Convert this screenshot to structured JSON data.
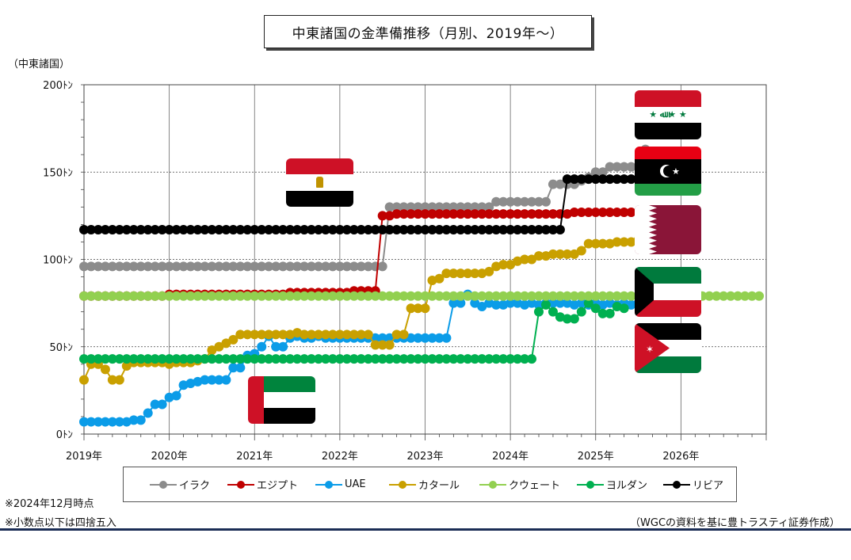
{
  "title": "中東諸国の金準備推移（月別、2019年～）",
  "unit_label": "（中東諸国）",
  "notes": [
    "※2024年12月時点",
    "※小数点以下は四捨五入"
  ],
  "source": "（WGCの資料を基に豊トラスティ証券作成）",
  "chart_data": {
    "type": "line",
    "title": "中東諸国の金準備推移（月別、2019年～）",
    "ylabel": "（中東諸国）",
    "ylim": [
      0,
      200
    ],
    "y_ticks": [
      0,
      50,
      100,
      150,
      200
    ],
    "y_tick_labels": [
      "0ﾄﾝ",
      "50ﾄﾝ",
      "100ﾄﾝ",
      "150ﾄﾝ",
      "200ﾄﾝ"
    ],
    "x_tick_labels": [
      "2019年",
      "2020年",
      "2021年",
      "2022年",
      "2023年",
      "2024年",
      "2025年",
      "2026年"
    ],
    "x_range": [
      "2019-01",
      "2027-01"
    ],
    "grid": "horizontal dashed, vertical solid at years",
    "legend_position": "bottom",
    "series": [
      {
        "name": "イラク",
        "color": "#8c8c8c",
        "start": "2019-01",
        "values": [
          96,
          96,
          96,
          96,
          96,
          96,
          96,
          96,
          96,
          96,
          96,
          96,
          96,
          96,
          96,
          96,
          96,
          96,
          96,
          96,
          96,
          96,
          96,
          96,
          96,
          96,
          96,
          96,
          96,
          96,
          96,
          96,
          96,
          96,
          96,
          96,
          96,
          96,
          96,
          96,
          96,
          96,
          96,
          130,
          130,
          130,
          130,
          130,
          130,
          130,
          130,
          130,
          130,
          130,
          130,
          130,
          130,
          130,
          133,
          133,
          133,
          133,
          133,
          133,
          133,
          133,
          143,
          143,
          143,
          143,
          145,
          147,
          150,
          150,
          153,
          153,
          153,
          153,
          153,
          163
        ]
      },
      {
        "name": "エジプト",
        "color": "#c00000",
        "start": "2019-01",
        "values": [
          79,
          79,
          79,
          79,
          79,
          79,
          79,
          79,
          79,
          79,
          79,
          79,
          80,
          80,
          80,
          80,
          80,
          80,
          80,
          80,
          80,
          80,
          80,
          80,
          80,
          80,
          80,
          80,
          80,
          81,
          81,
          81,
          81,
          81,
          81,
          81,
          81,
          81,
          82,
          82,
          82,
          82,
          125,
          125,
          126,
          126,
          126,
          126,
          126,
          126,
          126,
          126,
          126,
          126,
          126,
          126,
          126,
          126,
          126,
          126,
          126,
          126,
          126,
          126,
          126,
          126,
          126,
          126,
          126,
          127,
          127,
          127,
          127,
          127,
          127,
          127,
          127,
          127,
          127,
          127,
          127,
          127
        ]
      },
      {
        "name": "UAE",
        "color": "#0b9ce8",
        "start": "2019-01",
        "values": [
          7,
          7,
          7,
          7,
          7,
          7,
          7,
          8,
          8,
          12,
          17,
          17,
          21,
          22,
          28,
          29,
          30,
          31,
          31,
          31,
          31,
          38,
          38,
          45,
          46,
          50,
          56,
          50,
          50,
          55,
          56,
          55,
          55,
          56,
          55,
          55,
          55,
          55,
          55,
          55,
          55,
          55,
          55,
          55,
          55,
          55,
          55,
          55,
          55,
          55,
          55,
          55,
          75,
          75,
          80,
          75,
          73,
          75,
          74,
          74,
          75,
          75,
          74,
          75,
          74,
          75,
          75,
          75,
          75,
          74,
          75,
          74,
          75,
          74,
          75,
          74,
          75,
          74,
          75,
          75
        ]
      },
      {
        "name": "カタール",
        "color": "#c9a000",
        "start": "2019-01",
        "values": [
          31,
          40,
          40,
          37,
          31,
          31,
          39,
          41,
          41,
          41,
          41,
          41,
          40,
          41,
          41,
          41,
          42,
          43,
          48,
          50,
          52,
          54,
          57,
          57,
          57,
          57,
          57,
          57,
          57,
          57,
          58,
          57,
          57,
          57,
          57,
          57,
          57,
          57,
          57,
          57,
          57,
          51,
          51,
          51,
          57,
          57,
          72,
          72,
          72,
          88,
          89,
          92,
          92,
          92,
          92,
          92,
          92,
          93,
          96,
          97,
          97,
          99,
          100,
          100,
          102,
          102,
          103,
          103,
          103,
          103,
          105,
          109,
          109,
          109,
          109,
          110,
          110,
          110,
          111
        ]
      },
      {
        "name": "クウェート",
        "color": "#92d050",
        "start": "2019-01",
        "values": [
          79,
          79,
          79,
          79,
          79,
          79,
          79,
          79,
          79,
          79,
          79,
          79,
          79,
          79,
          79,
          79,
          79,
          79,
          79,
          79,
          79,
          79,
          79,
          79,
          79,
          79,
          79,
          79,
          79,
          79,
          79,
          79,
          79,
          79,
          79,
          79,
          79,
          79,
          79,
          79,
          79,
          79,
          79,
          79,
          79,
          79,
          79,
          79,
          79,
          79,
          79,
          79,
          79,
          79,
          79,
          79,
          79,
          79,
          79,
          79,
          79,
          79,
          79,
          79,
          79,
          79,
          79,
          79,
          79,
          79,
          79,
          79,
          79,
          79,
          79,
          79,
          79,
          79,
          79,
          79,
          79,
          79,
          79,
          79,
          79,
          79,
          79,
          79,
          79,
          79,
          79,
          79,
          79,
          79,
          79,
          79
        ]
      },
      {
        "name": "ヨルダン",
        "color": "#00b050",
        "start": "2019-01",
        "values": [
          43,
          43,
          43,
          43,
          43,
          43,
          43,
          43,
          43,
          43,
          43,
          43,
          43,
          43,
          43,
          43,
          43,
          43,
          43,
          43,
          43,
          43,
          43,
          43,
          43,
          43,
          43,
          43,
          43,
          43,
          43,
          43,
          43,
          43,
          43,
          43,
          43,
          43,
          43,
          43,
          43,
          43,
          43,
          43,
          43,
          43,
          43,
          43,
          43,
          43,
          43,
          43,
          43,
          43,
          43,
          43,
          43,
          43,
          43,
          43,
          43,
          43,
          43,
          43,
          70,
          74,
          70,
          67,
          66,
          66,
          70,
          75,
          72,
          69,
          69,
          73,
          72
        ]
      },
      {
        "name": "リビア",
        "color": "#000000",
        "start": "2019-01",
        "values": [
          117,
          117,
          117,
          117,
          117,
          117,
          117,
          117,
          117,
          117,
          117,
          117,
          117,
          117,
          117,
          117,
          117,
          117,
          117,
          117,
          117,
          117,
          117,
          117,
          117,
          117,
          117,
          117,
          117,
          117,
          117,
          117,
          117,
          117,
          117,
          117,
          117,
          117,
          117,
          117,
          117,
          117,
          117,
          117,
          117,
          117,
          117,
          117,
          117,
          117,
          117,
          117,
          117,
          117,
          117,
          117,
          117,
          117,
          117,
          117,
          117,
          117,
          117,
          117,
          117,
          117,
          117,
          117,
          146,
          146,
          146,
          146,
          146,
          146,
          146,
          146,
          146,
          146,
          146,
          146,
          146,
          146,
          146,
          146
        ]
      }
    ]
  }
}
